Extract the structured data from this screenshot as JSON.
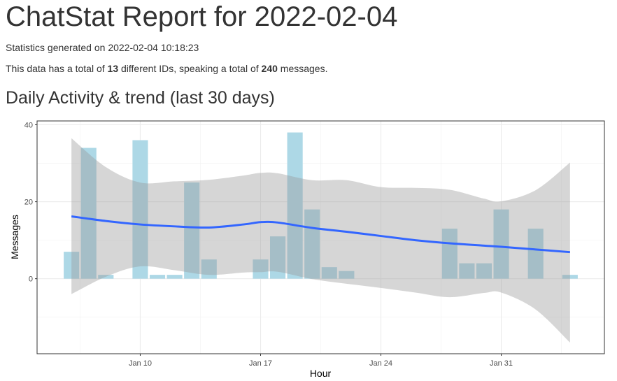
{
  "title": "ChatStat Report for 2022-02-04",
  "generated": {
    "prefix": "Statistics generated on ",
    "value": "2022-02-04 10:18:23"
  },
  "summary": {
    "t1": "This data has a total of ",
    "ids": "13",
    "t2": " different IDs, speaking a total of ",
    "messages": "240",
    "t3": " messages."
  },
  "section_title": "Daily Activity & trend (last 30 days)",
  "chart_data": {
    "type": "bar",
    "xlabel": "Hour",
    "ylabel": "Messages",
    "xlim": [
      "2022-01-04",
      "2022-02-06"
    ],
    "ylim": [
      -19.5,
      41
    ],
    "x_ticks": [
      {
        "date": "2022-01-10",
        "label": "Jan 10"
      },
      {
        "date": "2022-01-17",
        "label": "Jan 17"
      },
      {
        "date": "2022-01-24",
        "label": "Jan 24"
      },
      {
        "date": "2022-01-31",
        "label": "Jan 31"
      }
    ],
    "y_ticks": [
      0,
      20,
      40
    ],
    "grid": true,
    "colors": {
      "bar": "#add8e6",
      "trend": "#3366ff",
      "band": "#999999"
    },
    "bars": [
      {
        "date": "2022-01-06",
        "value": 7
      },
      {
        "date": "2022-01-07",
        "value": 34
      },
      {
        "date": "2022-01-08",
        "value": 1
      },
      {
        "date": "2022-01-10",
        "value": 36
      },
      {
        "date": "2022-01-11",
        "value": 1
      },
      {
        "date": "2022-01-12",
        "value": 1
      },
      {
        "date": "2022-01-13",
        "value": 25
      },
      {
        "date": "2022-01-14",
        "value": 5
      },
      {
        "date": "2022-01-17",
        "value": 5
      },
      {
        "date": "2022-01-18",
        "value": 11
      },
      {
        "date": "2022-01-19",
        "value": 38
      },
      {
        "date": "2022-01-20",
        "value": 18
      },
      {
        "date": "2022-01-21",
        "value": 3
      },
      {
        "date": "2022-01-22",
        "value": 2
      },
      {
        "date": "2022-01-28",
        "value": 13
      },
      {
        "date": "2022-01-29",
        "value": 4
      },
      {
        "date": "2022-01-30",
        "value": 4
      },
      {
        "date": "2022-01-31",
        "value": 18
      },
      {
        "date": "2022-02-02",
        "value": 13
      },
      {
        "date": "2022-02-04",
        "value": 1
      }
    ],
    "trend": [
      {
        "date": "2022-01-06",
        "fit": 16.2,
        "lo": -4,
        "hi": 36.5
      },
      {
        "date": "2022-01-08",
        "fit": 15.0,
        "lo": 0.5,
        "hi": 29
      },
      {
        "date": "2022-01-10",
        "fit": 14.1,
        "lo": 3.2,
        "hi": 25
      },
      {
        "date": "2022-01-12",
        "fit": 13.6,
        "lo": 2.2,
        "hi": 25.3
      },
      {
        "date": "2022-01-14",
        "fit": 13.3,
        "lo": 1.0,
        "hi": 25.7
      },
      {
        "date": "2022-01-16",
        "fit": 14.1,
        "lo": 1.6,
        "hi": 26.8
      },
      {
        "date": "2022-01-17",
        "fit": 14.7,
        "lo": 1.7,
        "hi": 27.5
      },
      {
        "date": "2022-01-18",
        "fit": 14.6,
        "lo": 1.8,
        "hi": 27.4
      },
      {
        "date": "2022-01-20",
        "fit": 13.2,
        "lo": -0.1,
        "hi": 25.6
      },
      {
        "date": "2022-01-22",
        "fit": 12.2,
        "lo": -1.3,
        "hi": 25.6
      },
      {
        "date": "2022-01-24",
        "fit": 11.1,
        "lo": -2.4,
        "hi": 23.8
      },
      {
        "date": "2022-01-26",
        "fit": 10.0,
        "lo": -3.6,
        "hi": 23.6
      },
      {
        "date": "2022-01-28",
        "fit": 9.2,
        "lo": -4.8,
        "hi": 23.1
      },
      {
        "date": "2022-01-30",
        "fit": 8.6,
        "lo": -3.7,
        "hi": 20.8
      },
      {
        "date": "2022-01-31",
        "fit": 8.3,
        "lo": -3.6,
        "hi": 20.1
      },
      {
        "date": "2022-02-02",
        "fit": 7.6,
        "lo": -8,
        "hi": 23
      },
      {
        "date": "2022-02-04",
        "fit": 6.9,
        "lo": -16.6,
        "hi": 30.2
      }
    ]
  }
}
